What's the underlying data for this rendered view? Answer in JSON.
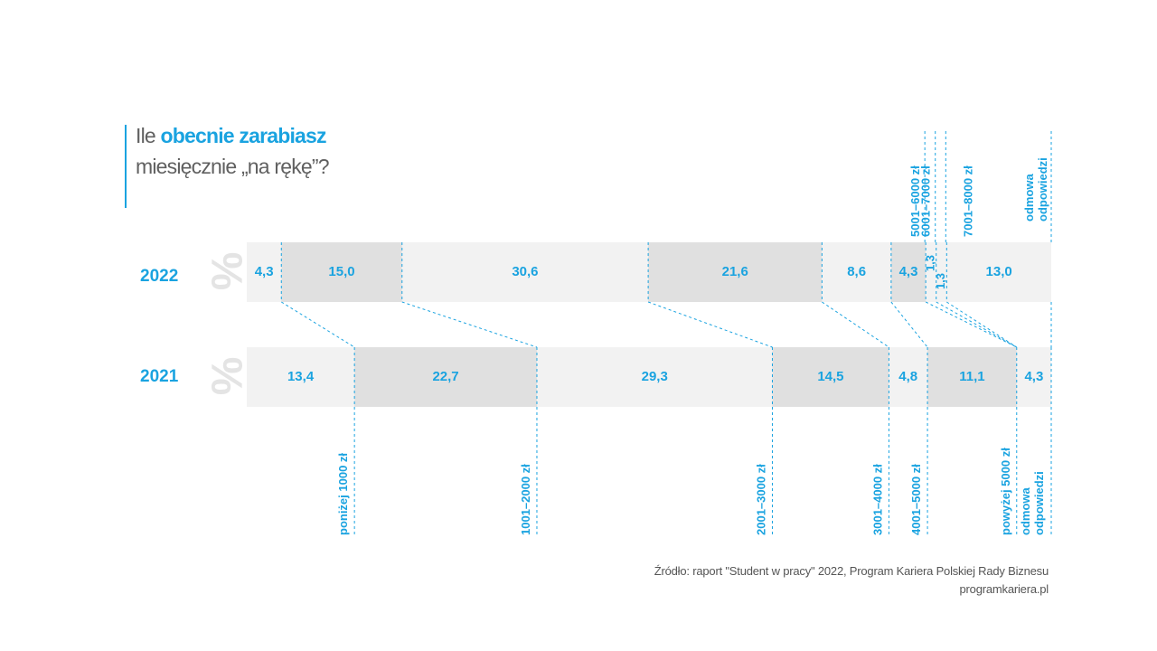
{
  "title": {
    "prefix": "Ile ",
    "accent": "obecnie zarabiasz",
    "line2": "miesięcznie „na rękę”?"
  },
  "colors": {
    "accent": "#1aa3e0",
    "bar_light": "#f2f2f2",
    "bar_dark": "#e0e0e0",
    "text_gray": "#606060"
  },
  "percent_symbol": "%",
  "chart_data": {
    "type": "bar",
    "orientation": "horizontal-stacked-100",
    "title": "Ile obecnie zarabiasz miesięcznie „na rękę”?",
    "unit": "%",
    "years": [
      "2022",
      "2021"
    ],
    "series": [
      {
        "year": "2022",
        "segments": [
          {
            "value": 4.3,
            "label": "4,3"
          },
          {
            "value": 15.0,
            "label": "15,0"
          },
          {
            "value": 30.6,
            "label": "30,6"
          },
          {
            "value": 21.6,
            "label": "21,6"
          },
          {
            "value": 8.6,
            "label": "8,6"
          },
          {
            "value": 4.3,
            "label": "4,3"
          },
          {
            "value": 1.3,
            "label": "1,3"
          },
          {
            "value": 1.3,
            "label": "1,3"
          },
          {
            "value": 13.0,
            "label": "13,0"
          }
        ]
      },
      {
        "year": "2021",
        "segments": [
          {
            "value": 13.4,
            "label": "13,4"
          },
          {
            "value": 22.7,
            "label": "22,7"
          },
          {
            "value": 29.3,
            "label": "29,3"
          },
          {
            "value": 14.5,
            "label": "14,5"
          },
          {
            "value": 4.8,
            "label": "4,8"
          },
          {
            "value": 11.1,
            "label": "11,1"
          },
          {
            "value": 4.3,
            "label": "4,3"
          }
        ]
      }
    ],
    "categories_2022": [
      "poniżej 1000 zł",
      "1001–2000 zł",
      "2001–3000 zł",
      "3001–4000 zł",
      "4001–5000 zł",
      "5001–6000 zł",
      "6001–7000 zł",
      "7001–8000 zł",
      "odmowa odpowiedzi"
    ],
    "categories_2021": [
      "poniżej 1000 zł",
      "1001–2000 zł",
      "2001–3000 zł",
      "3001–4000 zł",
      "4001–5000 zł",
      "powyżej 5000 zł",
      "odmowa odpowiedzi"
    ],
    "top_labels": [
      "5001–6000 zł",
      "6001–7000 zł",
      "7001–8000 zł",
      "odmowa",
      "odpowiedzi"
    ],
    "bottom_labels": [
      "poniżej 1000 zł",
      "1001–2000 zł",
      "2001–3000 zł",
      "3001–4000 zł",
      "4001–5000 zł",
      "powyżej 5000 zł",
      "odmowa",
      "odpowiedzi"
    ]
  },
  "source": {
    "line1": "Źródło: raport \"Student w pracy\" 2022, Program Kariera Polskiej Rady Biznesu",
    "line2": "programkariera.pl"
  }
}
